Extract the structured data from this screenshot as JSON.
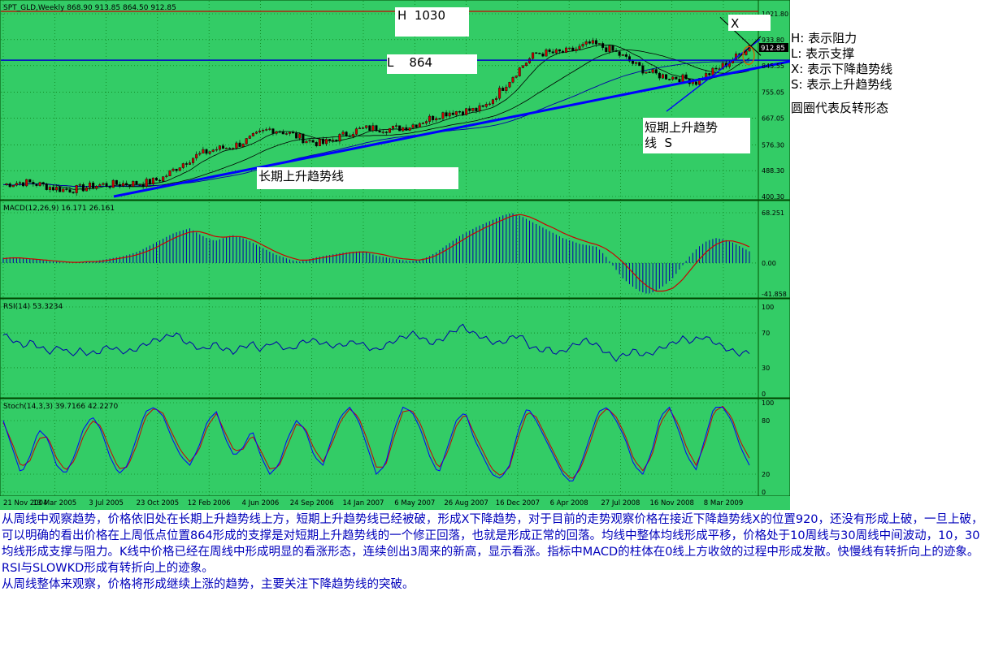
{
  "colors": {
    "background": "#33cc66",
    "grid": "#006600",
    "price_axis_bg": "#ffffff",
    "candle_up": "#cc0000",
    "candle_down": "#000000",
    "trendline": "#0000ff",
    "macd_hist": "#0000aa",
    "macd_signal": "#cc0000",
    "rsi_line": "#0000aa",
    "stoch_k": "#0000ff",
    "stoch_d": "#cc0000",
    "resistance_line": "#cc0000",
    "support_line": "#0000cc",
    "annotation_text": "#000000",
    "body_text": "#0000bb"
  },
  "chart_data": [
    {
      "type": "candlestick",
      "panel": "price",
      "header": "SPT_GLD,Weekly   868.90  913.85  864.50  912.85",
      "x_tick_labels": [
        "21 Nov 2004",
        "13 Mar 2005",
        "3 Jul 2005",
        "23 Oct 2005",
        "12 Feb 2006",
        "4 Jun 2006",
        "24 Sep 2006",
        "14 Jan 2007",
        "6 May 2007",
        "26 Aug 2007",
        "16 Dec 2007",
        "6 Apr 2008",
        "27 Jul 2008",
        "16 Nov 2008",
        "8 Mar 2009"
      ],
      "y_tick_labels": [
        "1021.80",
        "933.80",
        "845.55",
        "755.05",
        "667.05",
        "576.30",
        "488.30",
        "400.30"
      ],
      "ylim": [
        400.3,
        1021.8
      ],
      "last_price_label": "912.85",
      "approx_close_path": [
        {
          "x": "21 Nov 2004",
          "y": 440
        },
        {
          "x": "13 Mar 2005",
          "y": 435
        },
        {
          "x": "3 Jul 2005",
          "y": 430
        },
        {
          "x": "23 Oct 2005",
          "y": 470
        },
        {
          "x": "12 Feb 2006",
          "y": 565
        },
        {
          "x": "4 Jun 2006",
          "y": 620
        },
        {
          "x": "24 Sep 2006",
          "y": 590
        },
        {
          "x": "14 Jan 2007",
          "y": 630
        },
        {
          "x": "6 May 2007",
          "y": 660
        },
        {
          "x": "26 Aug 2007",
          "y": 710
        },
        {
          "x": "16 Dec 2007",
          "y": 880
        },
        {
          "x": "6 Apr 2008",
          "y": 920
        },
        {
          "x": "27 Jul 2008",
          "y": 840
        },
        {
          "x": "16 Nov 2008",
          "y": 780
        },
        {
          "x": "8 Mar 2009",
          "y": 920
        }
      ],
      "annotations": [
        {
          "id": "resistance",
          "label": "H  1030",
          "level": 1030
        },
        {
          "id": "support",
          "label": "L    864",
          "level": 864
        },
        {
          "id": "x_mark",
          "label": "X"
        },
        {
          "id": "long_trend",
          "label": "长期上升趋势线"
        },
        {
          "id": "short_trend",
          "label_line1": "短期上升趋势",
          "label_line2": "线  S"
        }
      ]
    },
    {
      "type": "line",
      "panel": "macd",
      "header": "MACD(12,26,9) 16.171 26.161",
      "y_tick_labels": [
        "68.251",
        "0.00",
        "-41.858"
      ],
      "ylim": [
        -41.858,
        68.251
      ],
      "series": [
        {
          "kind": "histogram",
          "values": [
            7,
            8,
            7,
            6,
            5,
            3,
            2,
            1,
            0,
            1,
            2,
            3,
            5,
            7,
            9,
            12,
            16,
            22,
            28,
            34,
            40,
            44,
            47,
            40,
            34,
            30,
            34,
            38,
            35,
            30,
            24,
            18,
            12,
            8,
            4,
            2,
            5,
            8,
            10,
            12,
            14,
            15,
            16,
            14,
            10,
            8,
            6,
            4,
            3,
            4,
            8,
            14,
            22,
            30,
            38,
            44,
            50,
            55,
            60,
            65,
            68,
            64,
            58,
            52,
            46,
            40,
            34,
            30,
            26,
            24,
            22,
            10,
            -5,
            -20,
            -30,
            -38,
            -42,
            -38,
            -30,
            -20,
            -5,
            10,
            22,
            30,
            34,
            32,
            28,
            22,
            16
          ]
        },
        {
          "kind": "signal",
          "values": [
            6,
            7,
            7,
            6,
            5,
            4,
            3,
            2,
            1,
            1,
            2,
            2,
            3,
            5,
            7,
            9,
            12,
            16,
            21,
            27,
            33,
            38,
            42,
            43,
            40,
            36,
            35,
            36,
            36,
            33,
            28,
            22,
            16,
            11,
            7,
            4,
            4,
            6,
            8,
            10,
            12,
            14,
            15,
            15,
            13,
            11,
            8,
            6,
            5,
            4,
            6,
            10,
            16,
            23,
            30,
            37,
            43,
            49,
            54,
            59,
            64,
            66,
            63,
            58,
            52,
            47,
            41,
            36,
            32,
            28,
            25,
            20,
            12,
            2,
            -10,
            -22,
            -32,
            -38,
            -38,
            -34,
            -24,
            -10,
            4,
            16,
            25,
            30,
            30,
            27,
            22
          ]
        }
      ]
    },
    {
      "type": "line",
      "panel": "rsi",
      "header": "RSI(14) 53.3234",
      "y_tick_labels": [
        "100",
        "70",
        "30",
        "0"
      ],
      "ylim": [
        0,
        100
      ],
      "series": [
        {
          "name": "RSI(14)",
          "values": [
            68,
            62,
            55,
            60,
            52,
            48,
            55,
            45,
            50,
            46,
            48,
            55,
            50,
            48,
            52,
            58,
            62,
            65,
            70,
            60,
            55,
            50,
            58,
            52,
            48,
            54,
            58,
            50,
            60,
            55,
            50,
            58,
            62,
            60,
            56,
            55,
            58,
            60,
            54,
            50,
            56,
            62,
            66,
            70,
            62,
            58,
            64,
            72,
            78,
            70,
            66,
            60,
            58,
            64,
            68,
            55,
            50,
            52,
            46,
            52,
            58,
            62,
            56,
            48,
            40,
            45,
            50,
            44,
            48,
            54,
            58,
            64,
            60,
            66,
            62,
            55,
            50,
            46,
            48
          ]
        }
      ]
    },
    {
      "type": "line",
      "panel": "stochastic",
      "header": "Stoch(14,3,3) 39.7166 42.2270",
      "y_tick_labels": [
        "100",
        "80",
        "20",
        "0"
      ],
      "ylim": [
        0,
        100
      ],
      "series": [
        {
          "name": "%K",
          "values": [
            80,
            50,
            20,
            40,
            70,
            60,
            30,
            20,
            40,
            70,
            85,
            70,
            40,
            20,
            30,
            60,
            90,
            95,
            85,
            60,
            40,
            30,
            50,
            80,
            90,
            60,
            40,
            50,
            70,
            40,
            20,
            30,
            60,
            80,
            70,
            40,
            30,
            60,
            85,
            95,
            80,
            50,
            20,
            30,
            70,
            95,
            90,
            70,
            40,
            20,
            50,
            80,
            90,
            60,
            40,
            20,
            15,
            30,
            70,
            95,
            80,
            60,
            40,
            20,
            10,
            30,
            60,
            90,
            95,
            80,
            60,
            30,
            20,
            45,
            85,
            95,
            70,
            40,
            25,
            60,
            95,
            95,
            80,
            50,
            30
          ]
        },
        {
          "name": "%D",
          "values": [
            78,
            55,
            28,
            35,
            60,
            62,
            38,
            24,
            35,
            62,
            80,
            74,
            48,
            26,
            28,
            52,
            84,
            94,
            88,
            66,
            46,
            34,
            46,
            74,
            88,
            66,
            46,
            48,
            64,
            46,
            26,
            28,
            52,
            76,
            72,
            48,
            34,
            54,
            80,
            93,
            84,
            58,
            28,
            28,
            62,
            90,
            92,
            76,
            48,
            26,
            44,
            74,
            88,
            66,
            46,
            26,
            18,
            28,
            62,
            90,
            84,
            64,
            44,
            24,
            14,
            26,
            54,
            84,
            94,
            84,
            64,
            36,
            24,
            40,
            78,
            93,
            76,
            48,
            30,
            54,
            90,
            96,
            84,
            56,
            38
          ]
        }
      ]
    }
  ],
  "legend": {
    "h": "H: 表示阻力",
    "l": "L: 表示支撑",
    "x": "X: 表示下降趋势线",
    "s": "S: 表示上升趋势线",
    "circle": "圆圈代表反转形态"
  },
  "analysis": {
    "paragraph1": "从周线中观察趋势，价格依旧处在长期上升趋势线上方，短期上升趋势线已经被破，形成X下降趋势，对于目前的走势观察价格在接近下降趋势线X的位置920，还没有形成上破，一旦上破，可以明确的看出价格在上周低点位置864形成的支撑是对短期上升趋势线的一个修正回落，也就是形成正常的回落。均线中整体均线形成平移，价格处于10周线与30周线中间波动，10，30均线形成支撑与阻力。K线中价格已经在周线中形成明显的看涨形态，连续创出3周来的新高，显示看涨。指标中MACD的柱体在0线上方收敛的过程中形成发散。快慢线有转折向上的迹象。RSI与SLOWKD形成有转折向上的迹象。",
    "paragraph2": "从周线整体来观察，价格将形成继续上涨的趋势，主要关注下降趋势线的突破。"
  }
}
